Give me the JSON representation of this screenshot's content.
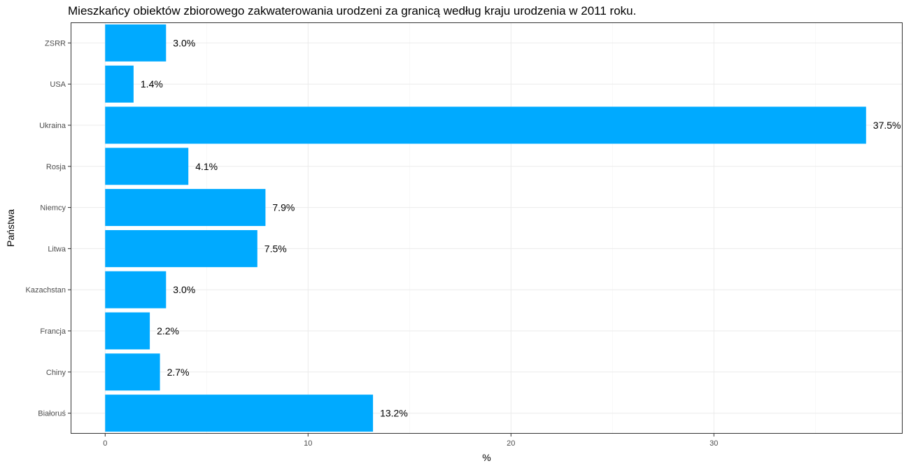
{
  "chart_data": {
    "type": "bar",
    "orientation": "horizontal",
    "title": "Mieszkańcy obiektów zbiorowego zakwaterowania urodzeni za granicą według kraju urodzenia w 2011 roku.",
    "xlabel": "%",
    "ylabel": "Państwa",
    "categories": [
      "Białoruś",
      "Chiny",
      "Francja",
      "Kazachstan",
      "Litwa",
      "Niemcy",
      "Rosja",
      "Ukraina",
      "USA",
      "ZSRR"
    ],
    "values": [
      13.2,
      2.7,
      2.2,
      3.0,
      7.5,
      7.9,
      4.1,
      37.5,
      1.4,
      3.0
    ],
    "data_labels": [
      "13.2%",
      "2.7%",
      "2.2%",
      "3.0%",
      "7.5%",
      "7.9%",
      "4.1%",
      "37.5%",
      "1.4%",
      "3.0%"
    ],
    "x_ticks": [
      0,
      10,
      20,
      30
    ],
    "xlim": [
      -1.7,
      39.3
    ],
    "bar_color": "#00AAFF",
    "grid": true,
    "legend": "none"
  }
}
